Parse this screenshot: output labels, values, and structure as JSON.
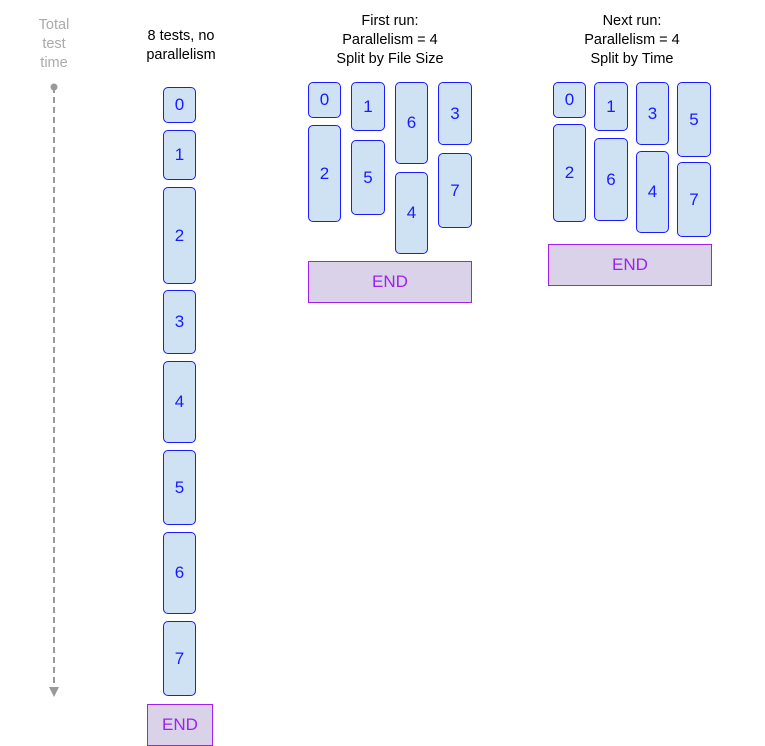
{
  "axis": {
    "label_lines": [
      "Total",
      "test",
      "time"
    ],
    "color": "#999999"
  },
  "groups": [
    {
      "header_lines": [
        "8 tests, no",
        "parallelism"
      ],
      "tests": [
        "0",
        "1",
        "2",
        "3",
        "4",
        "5",
        "6",
        "7"
      ],
      "end_label": "END"
    },
    {
      "header_lines": [
        "First run:",
        "Parallelism = 4",
        "Split by File Size"
      ],
      "tests": [
        "0",
        "2",
        "1",
        "5",
        "6",
        "4",
        "3",
        "7"
      ],
      "end_label": "END"
    },
    {
      "header_lines": [
        "Next run:",
        "Parallelism = 4",
        "Split by Time"
      ],
      "tests": [
        "0",
        "2",
        "1",
        "6",
        "3",
        "4",
        "5",
        "7"
      ],
      "end_label": "END"
    }
  ],
  "colors": {
    "test_fill": "#cfe2f3",
    "test_border": "#1a1aff",
    "end_fill": "#d9d2e9",
    "end_border": "#a020f0"
  }
}
